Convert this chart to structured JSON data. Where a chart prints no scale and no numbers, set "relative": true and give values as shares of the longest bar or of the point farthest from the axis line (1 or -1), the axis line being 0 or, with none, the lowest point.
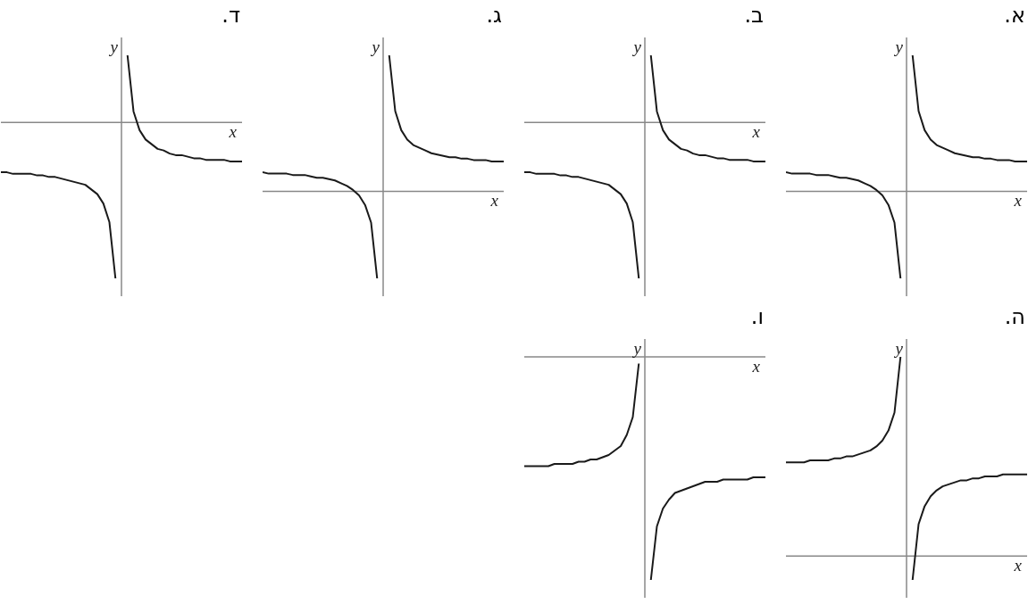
{
  "chart_data": [
    {
      "type": "line",
      "title": "א.",
      "xlabel": "x",
      "ylabel": "y",
      "relative": true,
      "marker": "none",
      "line_style": "solid",
      "categories": [
        null,
        null,
        null,
        null,
        null,
        null,
        null,
        null,
        null,
        null,
        null,
        null,
        null,
        null,
        null,
        null,
        null,
        null,
        null,
        null,
        null,
        null,
        null,
        null,
        null,
        null,
        null,
        null,
        null,
        null,
        null,
        null,
        null,
        null,
        null,
        null,
        null,
        null,
        null,
        null,
        null
      ],
      "series": [
        {
          "color": "#1a1a1a",
          "values": [
            0.14,
            0.13,
            0.13,
            0.13,
            0.13,
            0.12,
            0.12,
            0.12,
            0.11,
            0.1,
            0.1,
            0.09,
            0.08,
            0.06,
            0.04,
            0.01,
            -0.03,
            -0.1,
            -0.23,
            -0.64,
            null,
            null,
            null,
            null,
            null,
            null,
            null,
            null,
            null,
            null,
            null,
            null,
            null,
            null,
            null,
            null,
            null,
            null,
            null,
            null,
            null
          ]
        },
        {
          "color": "#1a1a1a",
          "values": [
            null,
            null,
            null,
            null,
            null,
            null,
            null,
            null,
            null,
            null,
            null,
            null,
            null,
            null,
            null,
            null,
            null,
            null,
            null,
            null,
            null,
            1,
            0.59,
            0.45,
            0.38,
            0.34,
            0.32,
            0.3,
            0.28,
            0.27,
            0.26,
            0.25,
            0.25,
            0.24,
            0.24,
            0.23,
            0.23,
            0.23,
            0.22,
            0.22,
            0.22
          ]
        }
      ]
    },
    {
      "type": "line",
      "title": "ב.",
      "xlabel": "x",
      "ylabel": "y",
      "relative": true,
      "marker": "none",
      "line_style": "solid",
      "categories": [
        null,
        null,
        null,
        null,
        null,
        null,
        null,
        null,
        null,
        null,
        null,
        null,
        null,
        null,
        null,
        null,
        null,
        null,
        null,
        null,
        null,
        null,
        null,
        null,
        null,
        null,
        null,
        null,
        null,
        null,
        null,
        null,
        null,
        null,
        null,
        null,
        null,
        null,
        null,
        null,
        null
      ],
      "series": [
        {
          "color": "#1a1a1a",
          "values": [
            -0.32,
            -0.32,
            -0.33,
            -0.33,
            -0.33,
            -0.33,
            -0.34,
            -0.34,
            -0.35,
            -0.35,
            -0.36,
            -0.37,
            -0.38,
            -0.39,
            -0.4,
            -0.43,
            -0.46,
            -0.52,
            -0.64,
            -1,
            null,
            null,
            null,
            null,
            null,
            null,
            null,
            null,
            null,
            null,
            null,
            null,
            null,
            null,
            null,
            null,
            null,
            null,
            null,
            null,
            null
          ]
        },
        {
          "color": "#1a1a1a",
          "values": [
            null,
            null,
            null,
            null,
            null,
            null,
            null,
            null,
            null,
            null,
            null,
            null,
            null,
            null,
            null,
            null,
            null,
            null,
            null,
            null,
            null,
            0.43,
            0.07,
            -0.05,
            -0.11,
            -0.14,
            -0.17,
            -0.18,
            -0.2,
            -0.21,
            -0.21,
            -0.22,
            -0.23,
            -0.23,
            -0.24,
            -0.24,
            -0.24,
            -0.24,
            -0.25,
            -0.25,
            -0.25
          ]
        }
      ]
    },
    {
      "type": "line",
      "title": "ג.",
      "xlabel": "x",
      "ylabel": "y",
      "relative": true,
      "marker": "none",
      "line_style": "solid",
      "categories": [
        null,
        null,
        null,
        null,
        null,
        null,
        null,
        null,
        null,
        null,
        null,
        null,
        null,
        null,
        null,
        null,
        null,
        null,
        null,
        null,
        null,
        null,
        null,
        null,
        null,
        null,
        null,
        null,
        null,
        null,
        null,
        null,
        null,
        null,
        null,
        null,
        null,
        null,
        null,
        null,
        null
      ],
      "series": [
        {
          "color": "#1a1a1a",
          "values": [
            0.14,
            0.13,
            0.13,
            0.13,
            0.13,
            0.12,
            0.12,
            0.12,
            0.11,
            0.1,
            0.1,
            0.09,
            0.08,
            0.06,
            0.04,
            0.01,
            -0.03,
            -0.1,
            -0.23,
            -0.64,
            null,
            null,
            null,
            null,
            null,
            null,
            null,
            null,
            null,
            null,
            null,
            null,
            null,
            null,
            null,
            null,
            null,
            null,
            null,
            null,
            null
          ]
        },
        {
          "color": "#1a1a1a",
          "values": [
            null,
            null,
            null,
            null,
            null,
            null,
            null,
            null,
            null,
            null,
            null,
            null,
            null,
            null,
            null,
            null,
            null,
            null,
            null,
            null,
            null,
            1,
            0.59,
            0.45,
            0.38,
            0.34,
            0.32,
            0.3,
            0.28,
            0.27,
            0.26,
            0.25,
            0.25,
            0.24,
            0.24,
            0.23,
            0.23,
            0.23,
            0.22,
            0.22,
            0.22
          ]
        }
      ]
    },
    {
      "type": "line",
      "title": "ד.",
      "xlabel": "x",
      "ylabel": "y",
      "relative": true,
      "marker": "none",
      "line_style": "solid",
      "categories": [
        null,
        null,
        null,
        null,
        null,
        null,
        null,
        null,
        null,
        null,
        null,
        null,
        null,
        null,
        null,
        null,
        null,
        null,
        null,
        null,
        null,
        null,
        null,
        null,
        null,
        null,
        null,
        null,
        null,
        null,
        null,
        null,
        null,
        null,
        null,
        null,
        null,
        null,
        null,
        null,
        null
      ],
      "series": [
        {
          "color": "#1a1a1a",
          "values": [
            -0.32,
            -0.32,
            -0.33,
            -0.33,
            -0.33,
            -0.33,
            -0.34,
            -0.34,
            -0.35,
            -0.35,
            -0.36,
            -0.37,
            -0.38,
            -0.39,
            -0.4,
            -0.43,
            -0.46,
            -0.52,
            -0.64,
            -1,
            null,
            null,
            null,
            null,
            null,
            null,
            null,
            null,
            null,
            null,
            null,
            null,
            null,
            null,
            null,
            null,
            null,
            null,
            null,
            null,
            null
          ]
        },
        {
          "color": "#1a1a1a",
          "values": [
            null,
            null,
            null,
            null,
            null,
            null,
            null,
            null,
            null,
            null,
            null,
            null,
            null,
            null,
            null,
            null,
            null,
            null,
            null,
            null,
            null,
            0.43,
            0.07,
            -0.05,
            -0.11,
            -0.14,
            -0.17,
            -0.18,
            -0.2,
            -0.21,
            -0.21,
            -0.22,
            -0.23,
            -0.23,
            -0.24,
            -0.24,
            -0.24,
            -0.24,
            -0.25,
            -0.25,
            -0.25
          ]
        }
      ]
    },
    {
      "type": "line",
      "title": "ה.",
      "xlabel": "x",
      "ylabel": "y",
      "relative": true,
      "marker": "none",
      "line_style": "solid",
      "categories": [
        null,
        null,
        null,
        null,
        null,
        null,
        null,
        null,
        null,
        null,
        null,
        null,
        null,
        null,
        null,
        null,
        null,
        null,
        null,
        null,
        null,
        null,
        null,
        null,
        null,
        null,
        null,
        null,
        null,
        null,
        null,
        null,
        null,
        null,
        null,
        null,
        null,
        null,
        null,
        null,
        null
      ],
      "series": [
        {
          "color": "#1a1a1a",
          "values": [
            0.47,
            0.47,
            0.47,
            0.47,
            0.48,
            0.48,
            0.48,
            0.48,
            0.49,
            0.49,
            0.5,
            0.5,
            0.51,
            0.52,
            0.53,
            0.55,
            0.58,
            0.63,
            0.72,
            1,
            null,
            null,
            null,
            null,
            null,
            null,
            null,
            null,
            null,
            null,
            null,
            null,
            null,
            null,
            null,
            null,
            null,
            null,
            null,
            null,
            null
          ]
        },
        {
          "color": "#1a1a1a",
          "values": [
            null,
            null,
            null,
            null,
            null,
            null,
            null,
            null,
            null,
            null,
            null,
            null,
            null,
            null,
            null,
            null,
            null,
            null,
            null,
            null,
            null,
            -0.12,
            0.16,
            0.25,
            0.3,
            0.33,
            0.35,
            0.36,
            0.37,
            0.38,
            0.38,
            0.39,
            0.39,
            0.4,
            0.4,
            0.4,
            0.41,
            0.41,
            0.41,
            0.41,
            0.41
          ]
        }
      ]
    },
    {
      "type": "line",
      "title": "ו.",
      "xlabel": "x",
      "ylabel": "y",
      "relative": true,
      "marker": "none",
      "line_style": "solid",
      "categories": [
        null,
        null,
        null,
        null,
        null,
        null,
        null,
        null,
        null,
        null,
        null,
        null,
        null,
        null,
        null,
        null,
        null,
        null,
        null,
        null,
        null,
        null,
        null,
        null,
        null,
        null,
        null,
        null,
        null,
        null,
        null,
        null,
        null,
        null,
        null,
        null,
        null,
        null,
        null,
        null,
        null
      ],
      "series": [
        {
          "color": "#1a1a1a",
          "values": [
            -0.49,
            -0.49,
            -0.49,
            -0.49,
            -0.49,
            -0.48,
            -0.48,
            -0.48,
            -0.48,
            -0.47,
            -0.47,
            -0.46,
            -0.46,
            -0.45,
            -0.44,
            -0.42,
            -0.4,
            -0.35,
            -0.27,
            -0.03,
            null,
            null,
            null,
            null,
            null,
            null,
            null,
            null,
            null,
            null,
            null,
            null,
            null,
            null,
            null,
            null,
            null,
            null,
            null,
            null,
            null
          ]
        },
        {
          "color": "#1a1a1a",
          "values": [
            null,
            null,
            null,
            null,
            null,
            null,
            null,
            null,
            null,
            null,
            null,
            null,
            null,
            null,
            null,
            null,
            null,
            null,
            null,
            null,
            null,
            -1,
            -0.76,
            -0.68,
            -0.64,
            -0.61,
            -0.6,
            -0.59,
            -0.58,
            -0.57,
            -0.56,
            -0.56,
            -0.56,
            -0.55,
            -0.55,
            -0.55,
            -0.55,
            -0.55,
            -0.54,
            -0.54,
            -0.54
          ]
        }
      ]
    }
  ]
}
